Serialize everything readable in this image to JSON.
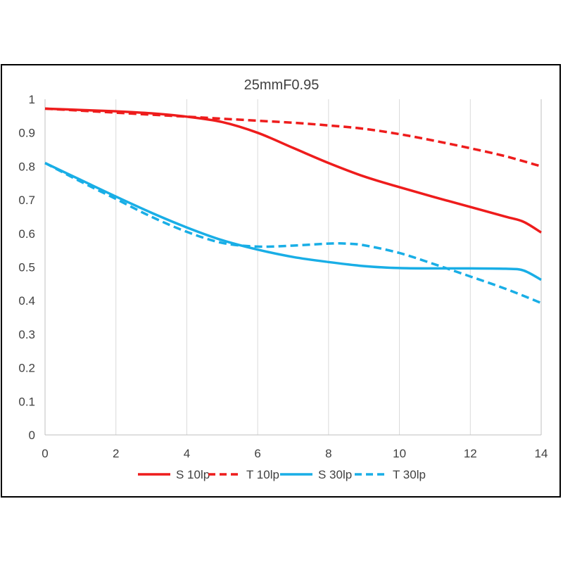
{
  "chart_data": {
    "type": "line",
    "title": "25mmF0.95",
    "xlabel": "",
    "ylabel": "",
    "xlim": [
      0,
      14
    ],
    "ylim": [
      0,
      1
    ],
    "x_ticks": [
      "0",
      "2",
      "4",
      "6",
      "8",
      "10",
      "12",
      "14"
    ],
    "y_ticks": [
      "0",
      "0.1",
      "0.2",
      "0.3",
      "0.4",
      "0.5",
      "0.6",
      "0.7",
      "0.8",
      "0.9",
      "1"
    ],
    "grid": "vertical",
    "legend_position": "bottom",
    "series": [
      {
        "name": "S 10lp",
        "color": "#ee1c1c",
        "dash": "solid",
        "x": [
          0,
          1,
          2,
          3,
          4,
          5,
          6,
          7,
          8,
          9,
          10,
          11,
          12,
          13,
          13.5,
          14
        ],
        "y": [
          0.972,
          0.968,
          0.964,
          0.958,
          0.948,
          0.932,
          0.9,
          0.855,
          0.81,
          0.77,
          0.738,
          0.708,
          0.679,
          0.65,
          0.635,
          0.603
        ]
      },
      {
        "name": "T 10lp",
        "color": "#ee1c1c",
        "dash": "dashed",
        "x": [
          0,
          1,
          2,
          3,
          4,
          5,
          6,
          7,
          8,
          9,
          10,
          11,
          12,
          13,
          14
        ],
        "y": [
          0.972,
          0.966,
          0.96,
          0.954,
          0.948,
          0.942,
          0.936,
          0.93,
          0.922,
          0.912,
          0.896,
          0.876,
          0.854,
          0.83,
          0.8
        ]
      },
      {
        "name": "S 30lp",
        "color": "#19aee6",
        "dash": "solid",
        "x": [
          0,
          1,
          2,
          3,
          4,
          5,
          6,
          7,
          8,
          9,
          10,
          11,
          12,
          13,
          13.5,
          14
        ],
        "y": [
          0.81,
          0.76,
          0.71,
          0.662,
          0.618,
          0.58,
          0.552,
          0.53,
          0.515,
          0.503,
          0.497,
          0.496,
          0.496,
          0.495,
          0.49,
          0.462
        ]
      },
      {
        "name": "T 30lp",
        "color": "#19aee6",
        "dash": "dashed",
        "x": [
          0,
          1,
          2,
          3,
          4,
          5,
          6,
          7,
          8,
          8.5,
          9,
          10,
          11,
          12,
          13,
          14
        ],
        "y": [
          0.81,
          0.755,
          0.703,
          0.65,
          0.605,
          0.572,
          0.561,
          0.564,
          0.57,
          0.57,
          0.565,
          0.542,
          0.508,
          0.472,
          0.435,
          0.393
        ]
      }
    ]
  }
}
